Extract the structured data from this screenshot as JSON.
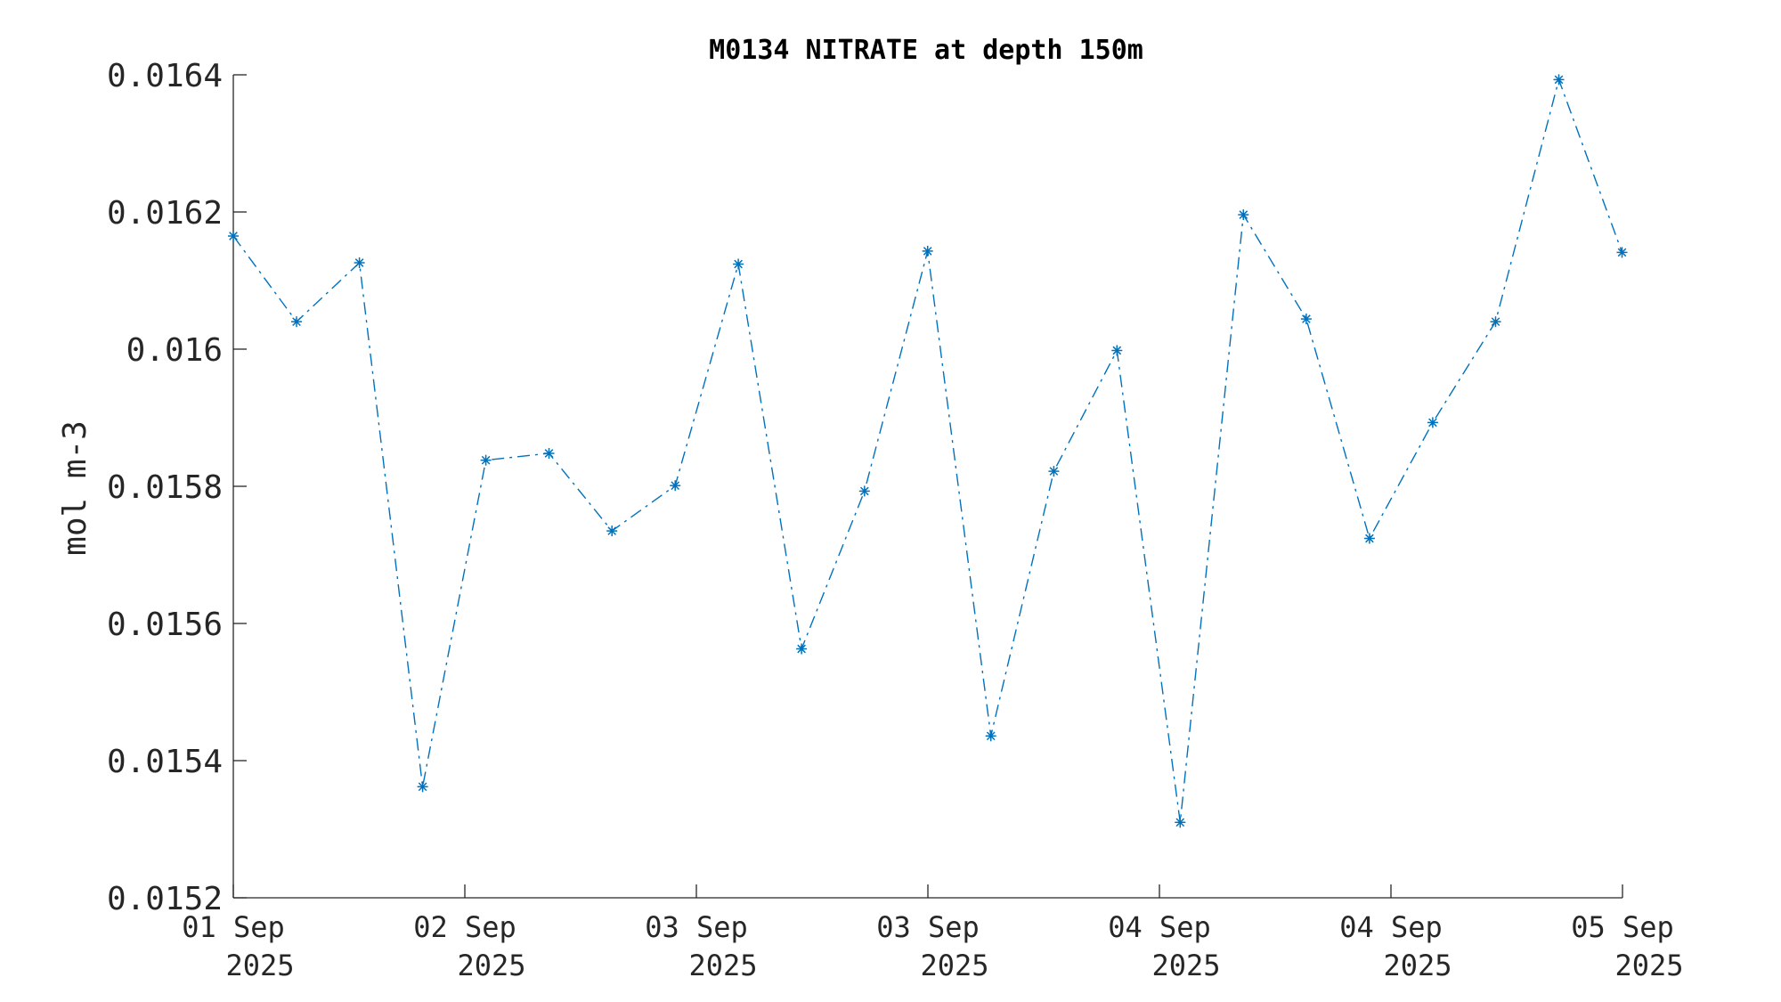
{
  "chart_data": {
    "type": "line",
    "title": "M0134 NITRATE at depth 150m",
    "xlabel": "",
    "ylabel": "mol m-3",
    "ylim": [
      0.0152,
      0.0164
    ],
    "xlim": [
      "2025-09-01 00:00",
      "2025-09-05 00:00"
    ],
    "yticks": [
      0.0152,
      0.0154,
      0.0156,
      0.0158,
      0.016,
      0.0162,
      0.0164
    ],
    "ytick_labels": [
      "0.0152",
      "0.0154",
      "0.0156",
      "0.0158",
      "0.016",
      "0.0162",
      "0.0164"
    ],
    "xticks": [
      "2025-09-01 00:00",
      "2025-09-01 16:00",
      "2025-09-02 08:00",
      "2025-09-03 00:00",
      "2025-09-03 16:00",
      "2025-09-04 08:00",
      "2025-09-05 00:00"
    ],
    "xtick_labels": [
      [
        "01 Sep",
        "2025"
      ],
      [
        "02 Sep",
        "2025"
      ],
      [
        "03 Sep",
        "2025"
      ],
      [
        "03 Sep",
        "2025"
      ],
      [
        "04 Sep",
        "2025"
      ],
      [
        "04 Sep",
        "2025"
      ],
      [
        "05 Sep",
        "2025"
      ]
    ],
    "grid": false,
    "series": [
      {
        "color": "#0072BD",
        "line_style": "dash-dot",
        "marker": "asterisk",
        "x": [
          "2025-09-01 00:00",
          "2025-09-01 04:22",
          "2025-09-01 08:43",
          "2025-09-01 13:05",
          "2025-09-01 17:27",
          "2025-09-01 21:49",
          "2025-09-02 02:10",
          "2025-09-02 06:32",
          "2025-09-02 10:54",
          "2025-09-02 15:16",
          "2025-09-02 19:37",
          "2025-09-02 23:59",
          "2025-09-03 04:21",
          "2025-09-03 08:42",
          "2025-09-03 13:04",
          "2025-09-03 17:26",
          "2025-09-03 21:48",
          "2025-09-04 02:09",
          "2025-09-04 06:31",
          "2025-09-04 10:53",
          "2025-09-04 15:14",
          "2025-09-04 19:36",
          "2025-09-04 23:58"
        ],
        "y": [
          0.016165,
          0.01604,
          0.016126,
          0.015362,
          0.015838,
          0.015848,
          0.015735,
          0.015801,
          0.016124,
          0.015563,
          0.015793,
          0.016143,
          0.015436,
          0.015822,
          0.015998,
          0.01531,
          0.016196,
          0.016044,
          0.015724,
          0.015893,
          0.01604,
          0.016393,
          0.016141
        ]
      }
    ]
  }
}
